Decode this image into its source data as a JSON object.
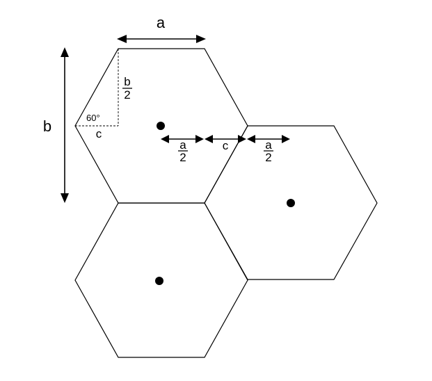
{
  "labels": {
    "a": "a",
    "b": "b",
    "c_triangle": "c",
    "c_gap": "c",
    "angle": "60°",
    "half_b_num": "b",
    "half_b_den": "2",
    "half_a_left_num": "a",
    "half_a_left_den": "2",
    "half_a_right_num": "a",
    "half_a_right_den": "2"
  },
  "hexagons": [
    {
      "name": "top-left-hexagon"
    },
    {
      "name": "right-hexagon"
    },
    {
      "name": "bottom-hexagon"
    }
  ]
}
